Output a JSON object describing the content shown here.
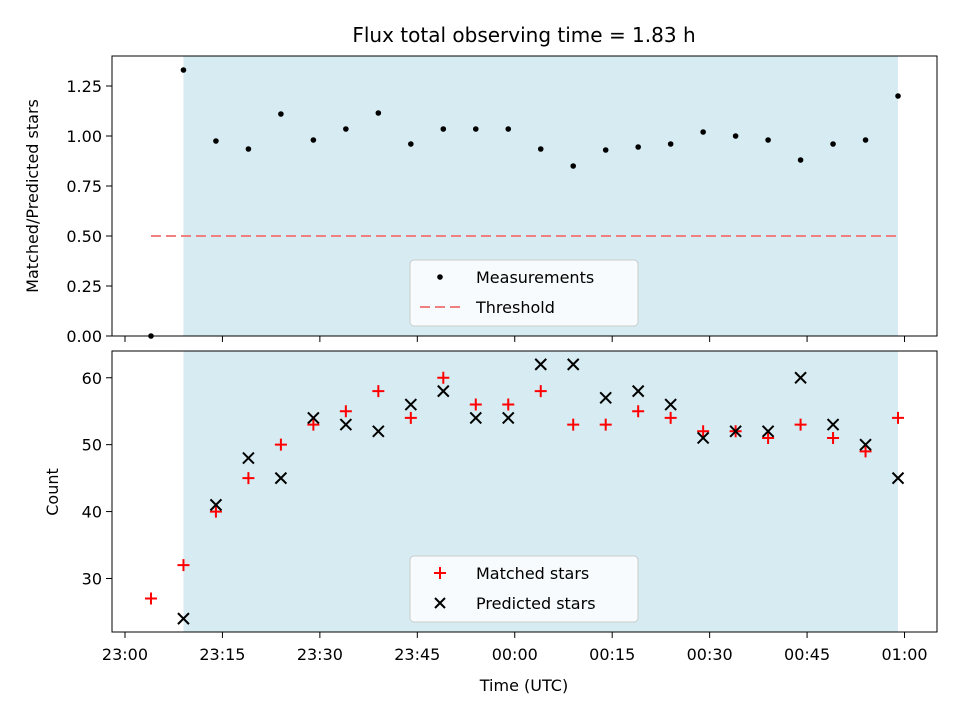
{
  "chart_data": {
    "title": "Flux total observing time = 1.83 h",
    "xlabel": "Time (UTC)",
    "x_unit": "minutes since 23:00 UTC",
    "xlim": [
      -2,
      125
    ],
    "xticks": [
      0,
      15,
      30,
      45,
      60,
      75,
      90,
      105,
      120
    ],
    "xtick_labels": [
      "23:00",
      "23:15",
      "23:30",
      "23:45",
      "00:00",
      "00:15",
      "00:30",
      "00:45",
      "01:00"
    ],
    "shaded_span": [
      9,
      119
    ],
    "shade_color": "#add8e6",
    "panels": [
      {
        "type": "scatter",
        "ylabel": "Matched/Predicted stars",
        "ylim": [
          0,
          1.4
        ],
        "yticks": [
          0.0,
          0.25,
          0.5,
          0.75,
          1.0,
          1.25
        ],
        "ytick_labels": [
          "0.00",
          "0.25",
          "0.50",
          "0.75",
          "1.00",
          "1.25"
        ],
        "series": [
          {
            "name": "Measurements",
            "marker": "dot",
            "color": "#000000",
            "x": [
              4,
              9,
              14,
              19,
              24,
              29,
              34,
              39,
              44,
              49,
              54,
              59,
              64,
              69,
              74,
              79,
              84,
              89,
              94,
              99,
              104,
              109,
              114,
              119
            ],
            "y": [
              0.0,
              1.33,
              0.975,
              0.935,
              1.11,
              0.98,
              1.035,
              1.115,
              0.96,
              1.035,
              1.035,
              1.035,
              0.935,
              0.85,
              0.93,
              0.945,
              0.96,
              1.02,
              1.0,
              0.98,
              0.88,
              0.96,
              0.98,
              1.2
            ]
          }
        ],
        "lines": [
          {
            "name": "Threshold",
            "style": "dashed",
            "color": "#f08080",
            "x": [
              4,
              119
            ],
            "y": [
              0.5,
              0.5
            ]
          }
        ],
        "legend_entries": [
          "Measurements",
          "Threshold"
        ],
        "legend_position": "lower center"
      },
      {
        "type": "scatter",
        "ylabel": "Count",
        "ylim": [
          22,
          64
        ],
        "yticks": [
          30,
          40,
          50,
          60
        ],
        "ytick_labels": [
          "30",
          "40",
          "50",
          "60"
        ],
        "series": [
          {
            "name": "Matched stars",
            "marker": "plus",
            "color": "#ff0000",
            "x": [
              4,
              9,
              14,
              19,
              24,
              29,
              34,
              39,
              44,
              49,
              54,
              59,
              64,
              69,
              74,
              79,
              84,
              89,
              94,
              99,
              104,
              109,
              114,
              119
            ],
            "y": [
              27,
              32,
              40,
              45,
              50,
              53,
              55,
              58,
              54,
              60,
              56,
              56,
              58,
              53,
              53,
              55,
              54,
              52,
              52,
              51,
              53,
              51,
              49,
              54
            ]
          },
          {
            "name": "Predicted stars",
            "marker": "x",
            "color": "#000000",
            "x": [
              9,
              14,
              19,
              24,
              29,
              34,
              39,
              44,
              49,
              54,
              59,
              64,
              69,
              74,
              79,
              84,
              89,
              94,
              99,
              104,
              109,
              114,
              119
            ],
            "y": [
              24,
              41,
              48,
              45,
              54,
              53,
              52,
              56,
              58,
              54,
              54,
              62,
              62,
              57,
              58,
              56,
              51,
              52,
              52,
              60,
              53,
              50,
              45
            ]
          }
        ],
        "legend_entries": [
          "Matched stars",
          "Predicted stars"
        ],
        "legend_position": "lower center"
      }
    ]
  }
}
